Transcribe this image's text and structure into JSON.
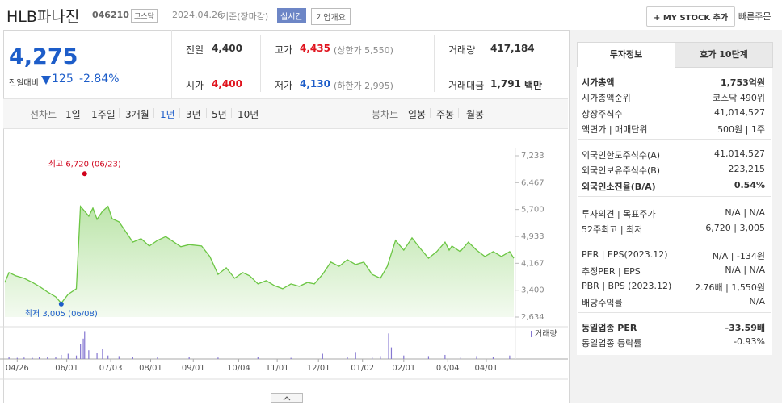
{
  "header": {
    "title": "HLB파나진",
    "code": "046210",
    "market": "코스닥",
    "date": "2024.04.26",
    "basis": "기준(장마감)",
    "realtime": "실시간",
    "company": "기업개요",
    "mystock": "+ MY STOCK 추가",
    "quick_order": "빠른주문"
  },
  "quote": {
    "price": "4,275",
    "change_label": "전일대비",
    "change": "125",
    "change_pct": "-2.84%",
    "rows": [
      [
        {
          "label": "전일",
          "value": "4,400"
        },
        {
          "label": "고가",
          "value": "4,435",
          "note": "(상한가 5,550)",
          "color": "red"
        },
        {
          "label": "거래량",
          "value": "417,184"
        }
      ],
      [
        {
          "label": "시가",
          "value": "4,400",
          "color": "red"
        },
        {
          "label": "저가",
          "value": "4,130",
          "note": "(하한가 2,995)",
          "color": "blue"
        },
        {
          "label": "거래대금",
          "value": "1,791",
          "note": "백만"
        }
      ]
    ]
  },
  "tabs": {
    "line_label": "선차트",
    "periods": [
      "1일",
      "1주일",
      "3개월",
      "1년",
      "3년",
      "5년",
      "10년"
    ],
    "selected": 3,
    "candle_label": "봉차트",
    "candles": [
      "일봉",
      "주봉",
      "월봉"
    ]
  },
  "chart": {
    "type": "line",
    "color": "#6cc644",
    "x": [
      -9,
      -6,
      -1,
      5,
      11,
      16,
      22,
      28,
      32,
      37,
      43,
      46,
      49,
      52,
      55,
      58,
      62,
      66,
      69,
      74,
      78,
      84,
      90,
      96,
      102,
      108,
      114,
      119,
      125,
      134,
      140,
      146,
      152,
      158,
      164,
      169,
      175,
      181,
      187,
      193,
      199,
      205,
      211,
      216,
      222,
      228,
      234,
      240,
      246,
      252,
      258,
      264,
      269,
      275,
      281,
      287,
      293,
      299,
      305,
      311,
      314,
      316,
      322,
      328,
      334,
      340,
      346,
      352,
      358,
      361
    ],
    "values": [
      3620,
      3900,
      3810,
      3740,
      3620,
      3510,
      3350,
      3210,
      3030,
      3280,
      3440,
      5790,
      5650,
      5510,
      5740,
      5420,
      5650,
      5790,
      5440,
      5350,
      5120,
      4770,
      4870,
      4660,
      4820,
      4930,
      4770,
      4640,
      4700,
      4660,
      4360,
      3850,
      4040,
      3740,
      3900,
      3810,
      3580,
      3670,
      3530,
      3440,
      3580,
      3510,
      3620,
      3580,
      3850,
      4200,
      4080,
      4270,
      4130,
      4200,
      3850,
      3740,
      4080,
      4820,
      4540,
      4890,
      4590,
      4310,
      4500,
      4770,
      4540,
      4660,
      4500,
      4770,
      4540,
      4360,
      4500,
      4360,
      4500,
      4310
    ],
    "xlim": [
      -9,
      361
    ],
    "ylim": [
      2634,
      7233
    ],
    "yticks": [
      {
        "value": 7233,
        "label": "7,233"
      },
      {
        "value": 6467,
        "label": "6,467"
      },
      {
        "value": 5700,
        "label": "5,700"
      },
      {
        "value": 4933,
        "label": "4,933"
      },
      {
        "value": 4167,
        "label": "4,167"
      },
      {
        "value": 3400,
        "label": "3,400"
      },
      {
        "value": 2634,
        "label": "2,634"
      }
    ],
    "xticks": [
      {
        "value": 0,
        "label": "04/26"
      },
      {
        "value": 36,
        "label": "06/01"
      },
      {
        "value": 68,
        "label": "07/03"
      },
      {
        "value": 97,
        "label": "08/01"
      },
      {
        "value": 128,
        "label": "09/01"
      },
      {
        "value": 161,
        "label": "10/04"
      },
      {
        "value": 189,
        "label": "11/01"
      },
      {
        "value": 219,
        "label": "12/01"
      },
      {
        "value": 251,
        "label": "01/02"
      },
      {
        "value": 281,
        "label": "02/01"
      },
      {
        "value": 313,
        "label": "03/04"
      },
      {
        "value": 341,
        "label": "04/01"
      }
    ],
    "high": {
      "label": "최고 6,720 (06/23)",
      "value": 6720,
      "x": 49,
      "color": "#d0021b"
    },
    "low": {
      "label": "최저 3,005 (06/08)",
      "value": 3005,
      "x": 32,
      "color": "#1d5dc9"
    },
    "volume": {
      "name": "거래량",
      "color": "#8577d1",
      "ylim": [
        0,
        5000000
      ],
      "x": [
        -6,
        0,
        5,
        11,
        16,
        22,
        28,
        32,
        37,
        43,
        46,
        48,
        49,
        52,
        58,
        62,
        66,
        74,
        84,
        102,
        125,
        146,
        175,
        199,
        222,
        240,
        246,
        258,
        264,
        270,
        272,
        281,
        299,
        311,
        322,
        334,
        346,
        358
      ],
      "values": [
        300000,
        200000,
        250000,
        200000,
        400000,
        300000,
        350000,
        700000,
        900000,
        600000,
        2500000,
        3500000,
        4800000,
        1500000,
        1000000,
        1800000,
        600000,
        500000,
        400000,
        300000,
        300000,
        250000,
        300000,
        200000,
        900000,
        300000,
        1200000,
        400000,
        500000,
        4400000,
        2000000,
        600000,
        500000,
        700000,
        400000,
        500000,
        300000,
        600000
      ]
    }
  },
  "side": {
    "tabs": [
      "투자정보",
      "호가 10단계"
    ],
    "groups": [
      [
        {
          "label": "시가총액",
          "value": "1,753억원",
          "bold": true
        },
        {
          "label": "시가총액순위",
          "value": "코스닥 490위"
        },
        {
          "label": "상장주식수",
          "value": "41,014,527"
        },
        {
          "label": "액면가 | 매매단위",
          "value": "500원 | 1주"
        }
      ],
      [
        {
          "label": "외국인한도주식수(A)",
          "value": "41,014,527"
        },
        {
          "label": "외국인보유주식수(B)",
          "value": "223,215"
        },
        {
          "label": "외국인소진율(B/A)",
          "value": "0.54%",
          "bold": true
        }
      ],
      [
        {
          "label": "투자의견 | 목표주가",
          "value": "N/A | N/A"
        },
        {
          "label": "52주최고 | 최저",
          "value": "6,720 | 3,005"
        }
      ],
      [
        {
          "label": "PER | EPS(2023.12)",
          "value": "N/A | -134원"
        },
        {
          "label": "추정PER | EPS",
          "value": "N/A | N/A"
        },
        {
          "label": "PBR | BPS (2023.12)",
          "value": "2.76배 | 1,550원"
        },
        {
          "label": "배당수익률",
          "value": "N/A"
        }
      ],
      [
        {
          "label": "동일업종 PER",
          "value": "-33.59배",
          "bold": true
        },
        {
          "label": "동일업종 등락률",
          "value": "-0.93%",
          "color": "blue"
        }
      ]
    ]
  }
}
